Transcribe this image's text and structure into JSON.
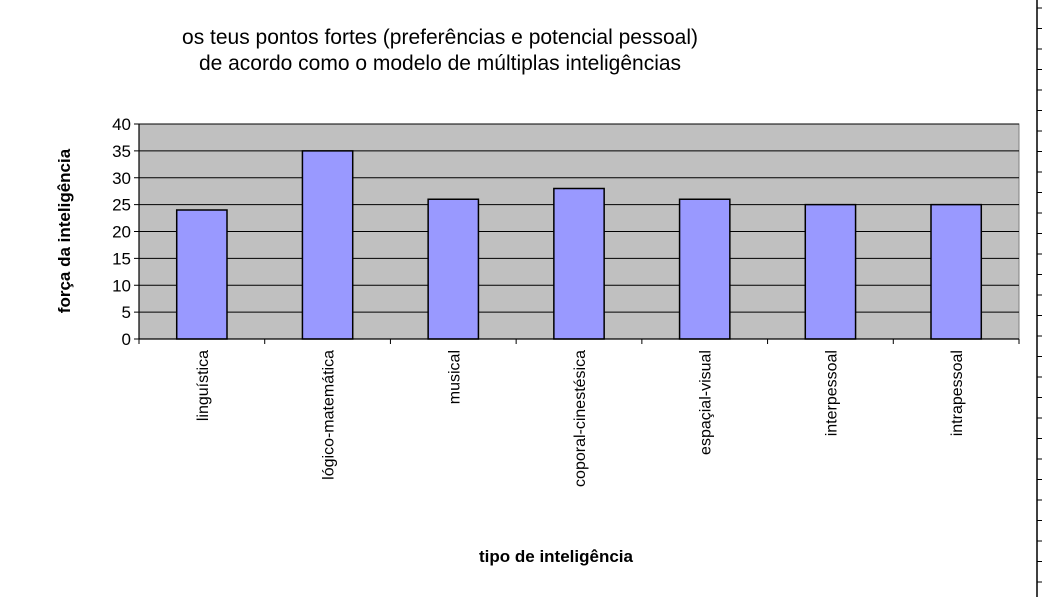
{
  "chart_data": {
    "type": "bar",
    "title": "os teus pontos fortes (preferências e potencial pessoal)",
    "subtitle": "de acordo como o modelo de múltiplas inteligências",
    "xlabel": "tipo de inteligência",
    "ylabel": "força da inteligência",
    "categories": [
      "linguística",
      "lógico-matemática",
      "musical",
      "coporal-cinestésica",
      "espaçial-visual",
      "interpessoal",
      "intrapessoal"
    ],
    "values": [
      24,
      35,
      26,
      28,
      26,
      25,
      25
    ],
    "ylim": [
      0,
      40
    ],
    "yticks": [
      0,
      5,
      10,
      15,
      20,
      25,
      30,
      35,
      40
    ],
    "grid": true,
    "legend": "none",
    "colors": {
      "bar": "#9999ff",
      "plot_background": "#c0c0c0",
      "bar_border": "#000000",
      "gridline": "#000000"
    }
  }
}
